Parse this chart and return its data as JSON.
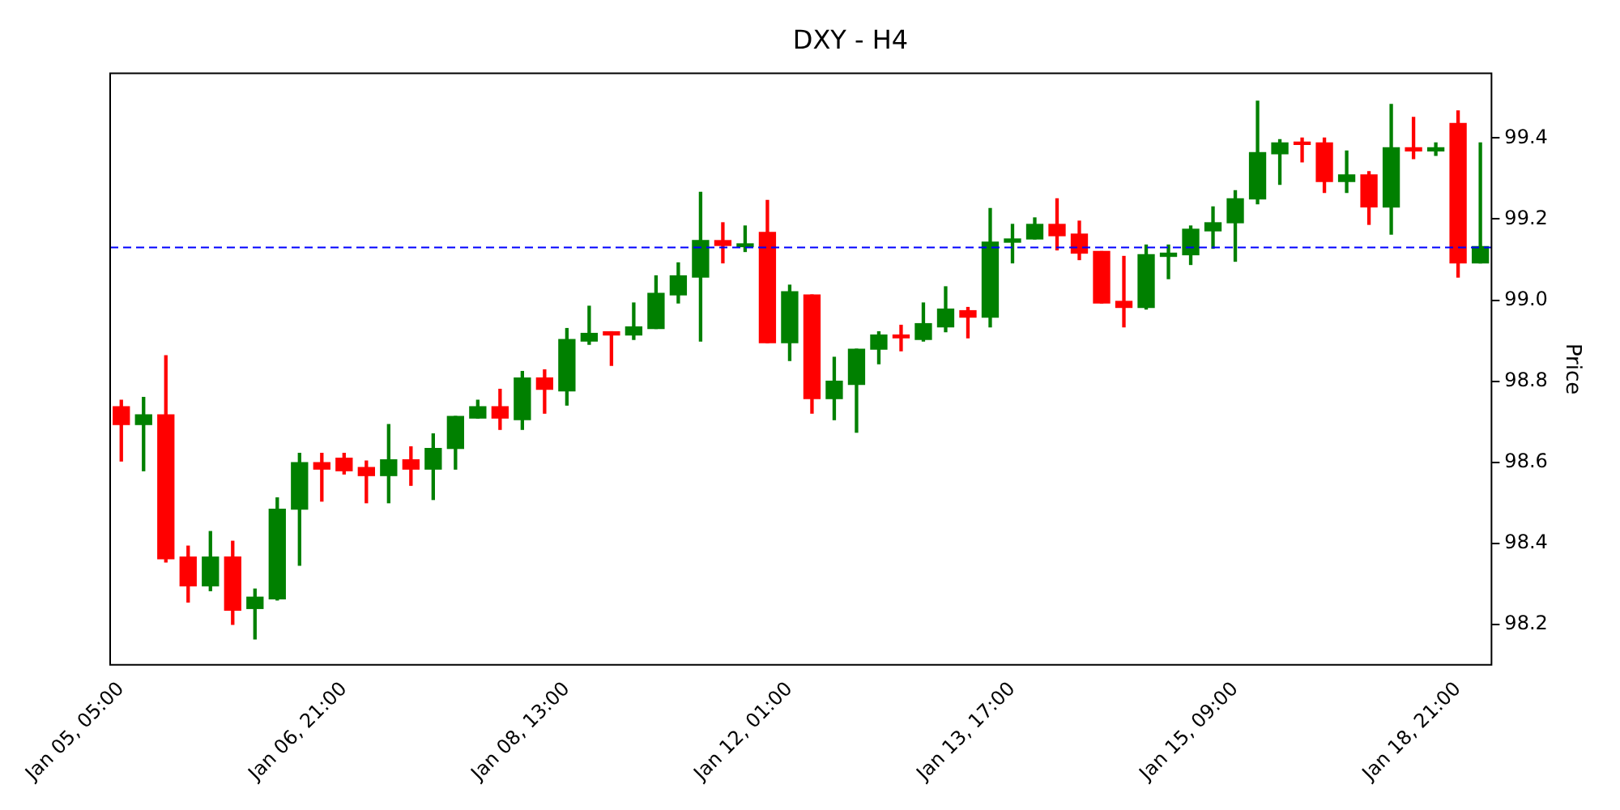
{
  "chart_data": {
    "type": "candlestick",
    "title": "DXY - H4",
    "ylabel": "Price",
    "categories": [
      "Jan 05, 05:00",
      null,
      null,
      null,
      null,
      null,
      null,
      null,
      null,
      null,
      "Jan 06, 21:00",
      null,
      null,
      null,
      null,
      null,
      null,
      null,
      null,
      null,
      "Jan 08, 13:00",
      null,
      null,
      null,
      null,
      null,
      null,
      null,
      null,
      null,
      "Jan 12, 01:00",
      null,
      null,
      null,
      null,
      null,
      null,
      null,
      null,
      null,
      "Jan 13, 17:00",
      null,
      null,
      null,
      null,
      null,
      null,
      null,
      null,
      null,
      "Jan 15, 09:00",
      null,
      null,
      null,
      null,
      null,
      null,
      null,
      null,
      null,
      "Jan 18, 21:00",
      null
    ],
    "ohlc": [
      [
        98.737,
        98.753,
        98.603,
        98.693
      ],
      [
        98.693,
        98.76,
        98.579,
        98.717
      ],
      [
        98.717,
        98.863,
        98.354,
        98.362
      ],
      [
        98.366,
        98.393,
        98.255,
        98.295
      ],
      [
        98.295,
        98.429,
        98.283,
        98.366
      ],
      [
        98.366,
        98.405,
        98.2,
        98.235
      ],
      [
        98.239,
        98.287,
        98.164,
        98.267
      ],
      [
        98.263,
        98.512,
        98.26,
        98.484
      ],
      [
        98.484,
        98.622,
        98.346,
        98.599
      ],
      [
        98.599,
        98.622,
        98.504,
        98.583
      ],
      [
        98.61,
        98.622,
        98.571,
        98.579
      ],
      [
        98.587,
        98.603,
        98.5,
        98.567
      ],
      [
        98.567,
        98.693,
        98.5,
        98.606
      ],
      [
        98.606,
        98.638,
        98.543,
        98.583
      ],
      [
        98.583,
        98.67,
        98.508,
        98.634
      ],
      [
        98.634,
        98.713,
        98.583,
        98.713
      ],
      [
        98.709,
        98.753,
        98.709,
        98.737
      ],
      [
        98.737,
        98.78,
        98.681,
        98.709
      ],
      [
        98.705,
        98.824,
        98.681,
        98.808
      ],
      [
        98.808,
        98.828,
        98.721,
        98.78
      ],
      [
        98.776,
        98.93,
        98.741,
        98.903
      ],
      [
        98.899,
        98.985,
        98.891,
        98.918
      ],
      [
        98.922,
        98.922,
        98.839,
        98.914
      ],
      [
        98.914,
        98.993,
        98.903,
        98.934
      ],
      [
        98.93,
        99.06,
        98.93,
        99.017
      ],
      [
        99.013,
        99.092,
        98.993,
        99.06
      ],
      [
        99.057,
        99.266,
        98.899,
        99.147
      ],
      [
        99.147,
        99.191,
        99.092,
        99.135
      ],
      [
        99.132,
        99.183,
        99.12,
        99.139
      ],
      [
        99.167,
        99.246,
        98.895,
        98.895
      ],
      [
        98.895,
        99.037,
        98.851,
        99.021
      ],
      [
        99.013,
        99.013,
        98.721,
        98.757
      ],
      [
        98.757,
        98.859,
        98.705,
        98.8
      ],
      [
        98.792,
        98.879,
        98.674,
        98.879
      ],
      [
        98.879,
        98.922,
        98.843,
        98.914
      ],
      [
        98.914,
        98.938,
        98.875,
        98.907
      ],
      [
        98.903,
        98.993,
        98.899,
        98.942
      ],
      [
        98.934,
        99.033,
        98.922,
        98.978
      ],
      [
        98.974,
        98.982,
        98.907,
        98.958
      ],
      [
        98.958,
        99.226,
        98.934,
        99.143
      ],
      [
        99.143,
        99.187,
        99.092,
        99.151
      ],
      [
        99.151,
        99.203,
        99.151,
        99.187
      ],
      [
        99.187,
        99.25,
        99.124,
        99.159
      ],
      [
        99.163,
        99.195,
        99.1,
        99.116
      ],
      [
        99.12,
        99.12,
        98.993,
        98.993
      ],
      [
        98.997,
        99.108,
        98.934,
        98.982
      ],
      [
        98.982,
        99.136,
        98.978,
        99.112
      ],
      [
        99.108,
        99.136,
        99.053,
        99.116
      ],
      [
        99.112,
        99.183,
        99.088,
        99.175
      ],
      [
        99.171,
        99.23,
        99.128,
        99.191
      ],
      [
        99.191,
        99.27,
        99.096,
        99.25
      ],
      [
        99.25,
        99.491,
        99.238,
        99.364
      ],
      [
        99.361,
        99.396,
        99.286,
        99.388
      ],
      [
        99.388,
        99.4,
        99.341,
        99.384
      ],
      [
        99.388,
        99.4,
        99.266,
        99.293
      ],
      [
        99.293,
        99.368,
        99.266,
        99.309
      ],
      [
        99.309,
        99.317,
        99.187,
        99.23
      ],
      [
        99.23,
        99.483,
        99.163,
        99.376
      ],
      [
        99.376,
        99.451,
        99.349,
        99.368
      ],
      [
        99.368,
        99.388,
        99.357,
        99.376
      ],
      [
        99.436,
        99.467,
        99.057,
        99.092
      ],
      [
        99.092,
        99.388,
        99.092,
        99.132
      ]
    ],
    "colors": [
      "#ff0000",
      "#008000",
      "#ff0000",
      "#ff0000",
      "#008000",
      "#ff0000",
      "#008000",
      "#008000",
      "#008000",
      "#ff0000",
      "#ff0000",
      "#ff0000",
      "#008000",
      "#ff0000",
      "#008000",
      "#008000",
      "#008000",
      "#ff0000",
      "#008000",
      "#ff0000",
      "#008000",
      "#008000",
      "#ff0000",
      "#008000",
      "#008000",
      "#008000",
      "#008000",
      "#ff0000",
      "#008000",
      "#ff0000",
      "#008000",
      "#ff0000",
      "#008000",
      "#008000",
      "#008000",
      "#ff0000",
      "#008000",
      "#008000",
      "#ff0000",
      "#008000",
      "#008000",
      "#008000",
      "#ff0000",
      "#ff0000",
      "#ff0000",
      "#ff0000",
      "#008000",
      "#008000",
      "#008000",
      "#008000",
      "#008000",
      "#008000",
      "#008000",
      "#ff0000",
      "#ff0000",
      "#008000",
      "#ff0000",
      "#008000",
      "#ff0000",
      "#008000",
      "#ff0000",
      "#008000"
    ],
    "ylim": [
      98.1,
      99.56
    ],
    "yticks": [
      98.2,
      98.4,
      98.6,
      98.8,
      {
        "value": 99,
        "label": "99.0"
      },
      99.2,
      99.4
    ],
    "ref_lines": [
      {
        "axis": "y",
        "value": 99.13,
        "color": "#0000ff",
        "line_style": "dashed"
      }
    ],
    "grid": false,
    "legend": false
  }
}
